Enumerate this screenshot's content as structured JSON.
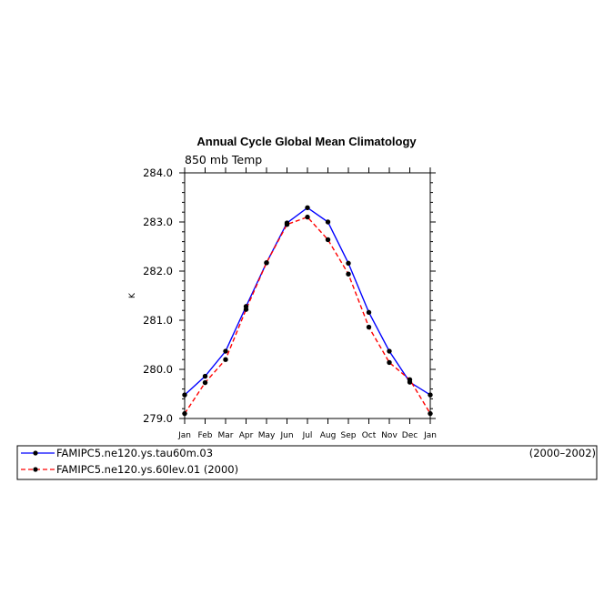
{
  "chart_data": {
    "type": "line",
    "title": "Annual Cycle Global Mean Climatology",
    "subtitle": "850 mb Temp",
    "xlabel": "",
    "ylabel": "K",
    "categories": [
      "Jan",
      "Feb",
      "Mar",
      "Apr",
      "May",
      "Jun",
      "Jul",
      "Aug",
      "Sep",
      "Oct",
      "Nov",
      "Dec",
      "Jan"
    ],
    "ylim": [
      279.0,
      284.0
    ],
    "yticks": [
      "279.0",
      "280.0",
      "281.0",
      "282.0",
      "283.0",
      "284.0"
    ],
    "grid": false,
    "legend_position": "bottom",
    "series": [
      {
        "name": "FAMIPC5.ne120.ys.tau60m.03",
        "period": "(2000–2002)",
        "color": "#0000ff",
        "dash": "solid",
        "values": [
          279.48,
          279.86,
          280.37,
          281.28,
          282.17,
          282.98,
          283.29,
          283.0,
          282.16,
          281.16,
          280.37,
          279.74,
          279.48
        ]
      },
      {
        "name": "FAMIPC5.ne120.ys.60lev.01 (2000)",
        "period": "",
        "color": "#ff0000",
        "dash": "dashed",
        "values": [
          279.1,
          279.73,
          280.2,
          281.22,
          282.17,
          282.95,
          283.1,
          282.64,
          281.94,
          280.86,
          280.14,
          279.79,
          279.1
        ]
      }
    ]
  }
}
